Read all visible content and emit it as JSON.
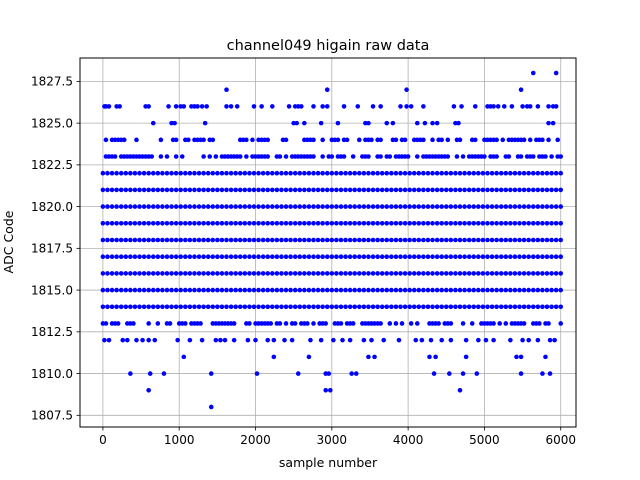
{
  "chart_data": {
    "type": "scatter",
    "title": "channel049 higain raw data",
    "xlabel": "sample number",
    "ylabel": "ADC Code",
    "xlim": [
      -300,
      6200
    ],
    "ylim": [
      1806.8,
      1828.9
    ],
    "xticks": [
      0,
      1000,
      2000,
      3000,
      4000,
      5000,
      6000
    ],
    "xtick_labels": [
      "0",
      "1000",
      "2000",
      "3000",
      "4000",
      "5000",
      "6000"
    ],
    "yticks": [
      1807.5,
      1810.0,
      1812.5,
      1815.0,
      1817.5,
      1820.0,
      1822.5,
      1825.0,
      1827.5
    ],
    "ytick_labels": [
      "1807.5",
      "1810.0",
      "1812.5",
      "1815.0",
      "1817.5",
      "1820.0",
      "1822.5",
      "1825.0",
      "1827.5"
    ],
    "grid": true,
    "legend": null,
    "marker_color": "#0000ff",
    "n_samples": 6000,
    "dense_levels": [
      1814,
      1815,
      1816,
      1817,
      1818,
      1819,
      1820,
      1821,
      1822
    ],
    "mid_levels": [
      1813,
      1823,
      1824
    ],
    "sparse_levels": [
      1812,
      1825,
      1826
    ],
    "series": [
      {
        "name": "",
        "points": [
          [
            20,
            1826
          ],
          [
            40,
            1826
          ],
          [
            80,
            1826
          ],
          [
            180,
            1826
          ],
          [
            220,
            1826
          ],
          [
            560,
            1826
          ],
          [
            600,
            1826
          ],
          [
            860,
            1826
          ],
          [
            960,
            1826
          ],
          [
            1020,
            1826
          ],
          [
            1060,
            1826
          ],
          [
            1160,
            1826
          ],
          [
            1200,
            1826
          ],
          [
            1240,
            1826
          ],
          [
            1300,
            1826
          ],
          [
            1360,
            1826
          ],
          [
            1620,
            1826
          ],
          [
            1680,
            1826
          ],
          [
            1760,
            1826
          ],
          [
            1980,
            1826
          ],
          [
            2080,
            1826
          ],
          [
            2220,
            1826
          ],
          [
            2440,
            1826
          ],
          [
            2520,
            1826
          ],
          [
            2560,
            1826
          ],
          [
            2600,
            1826
          ],
          [
            2760,
            1826
          ],
          [
            2880,
            1826
          ],
          [
            2940,
            1826
          ],
          [
            3160,
            1826
          ],
          [
            3340,
            1826
          ],
          [
            3540,
            1826
          ],
          [
            3640,
            1826
          ],
          [
            3900,
            1826
          ],
          [
            3980,
            1826
          ],
          [
            4040,
            1826
          ],
          [
            4200,
            1826
          ],
          [
            4600,
            1826
          ],
          [
            4700,
            1826
          ],
          [
            4880,
            1826
          ],
          [
            5040,
            1826
          ],
          [
            5080,
            1826
          ],
          [
            5120,
            1826
          ],
          [
            5180,
            1826
          ],
          [
            5260,
            1826
          ],
          [
            5360,
            1826
          ],
          [
            5500,
            1826
          ],
          [
            5560,
            1826
          ],
          [
            5600,
            1826
          ],
          [
            5700,
            1826
          ],
          [
            5840,
            1826
          ],
          [
            5900,
            1826
          ],
          [
            5940,
            1826
          ],
          [
            660,
            1825
          ],
          [
            900,
            1825
          ],
          [
            940,
            1825
          ],
          [
            1340,
            1825
          ],
          [
            2500,
            1825
          ],
          [
            2540,
            1825
          ],
          [
            2640,
            1825
          ],
          [
            2860,
            1825
          ],
          [
            3080,
            1825
          ],
          [
            3440,
            1825
          ],
          [
            3480,
            1825
          ],
          [
            3720,
            1825
          ],
          [
            3800,
            1825
          ],
          [
            4120,
            1825
          ],
          [
            4220,
            1825
          ],
          [
            4320,
            1825
          ],
          [
            4380,
            1825
          ],
          [
            4620,
            1825
          ],
          [
            4660,
            1825
          ],
          [
            5840,
            1825
          ],
          [
            5900,
            1825
          ],
          [
            1620,
            1827
          ],
          [
            2940,
            1827
          ],
          [
            3980,
            1827
          ],
          [
            5480,
            1827
          ],
          [
            5640,
            1828
          ],
          [
            5940,
            1828
          ],
          [
            20,
            1812
          ],
          [
            80,
            1812
          ],
          [
            260,
            1812
          ],
          [
            320,
            1812
          ],
          [
            440,
            1812
          ],
          [
            520,
            1812
          ],
          [
            600,
            1812
          ],
          [
            680,
            1812
          ],
          [
            980,
            1812
          ],
          [
            1140,
            1812
          ],
          [
            1300,
            1812
          ],
          [
            1480,
            1812
          ],
          [
            1540,
            1812
          ],
          [
            1600,
            1812
          ],
          [
            1720,
            1812
          ],
          [
            1900,
            1812
          ],
          [
            2000,
            1812
          ],
          [
            2160,
            1812
          ],
          [
            2240,
            1812
          ],
          [
            2380,
            1812
          ],
          [
            2480,
            1812
          ],
          [
            2720,
            1812
          ],
          [
            2860,
            1812
          ],
          [
            3020,
            1812
          ],
          [
            3140,
            1812
          ],
          [
            3240,
            1812
          ],
          [
            3420,
            1812
          ],
          [
            3520,
            1812
          ],
          [
            3680,
            1812
          ],
          [
            3880,
            1812
          ],
          [
            4100,
            1812
          ],
          [
            4180,
            1812
          ],
          [
            4300,
            1812
          ],
          [
            4440,
            1812
          ],
          [
            4560,
            1812
          ],
          [
            4760,
            1812
          ],
          [
            4920,
            1812
          ],
          [
            5020,
            1812
          ],
          [
            5120,
            1812
          ],
          [
            5340,
            1812
          ],
          [
            5500,
            1812
          ],
          [
            5580,
            1812
          ],
          [
            5700,
            1812
          ],
          [
            5860,
            1812
          ],
          [
            5920,
            1812
          ],
          [
            1060,
            1811
          ],
          [
            2240,
            1811
          ],
          [
            2700,
            1811
          ],
          [
            3480,
            1811
          ],
          [
            3560,
            1811
          ],
          [
            4280,
            1811
          ],
          [
            4360,
            1811
          ],
          [
            4760,
            1811
          ],
          [
            5420,
            1811
          ],
          [
            5480,
            1811
          ],
          [
            5800,
            1811
          ],
          [
            360,
            1810
          ],
          [
            620,
            1810
          ],
          [
            800,
            1810
          ],
          [
            1420,
            1810
          ],
          [
            2020,
            1810
          ],
          [
            2560,
            1810
          ],
          [
            2920,
            1810
          ],
          [
            2960,
            1810
          ],
          [
            3260,
            1810
          ],
          [
            3320,
            1810
          ],
          [
            4340,
            1810
          ],
          [
            4540,
            1810
          ],
          [
            4720,
            1810
          ],
          [
            4900,
            1810
          ],
          [
            5480,
            1810
          ],
          [
            5760,
            1810
          ],
          [
            5860,
            1810
          ],
          [
            600,
            1809
          ],
          [
            2920,
            1809
          ],
          [
            2980,
            1809
          ],
          [
            4680,
            1809
          ],
          [
            1420,
            1808
          ]
        ]
      }
    ]
  }
}
